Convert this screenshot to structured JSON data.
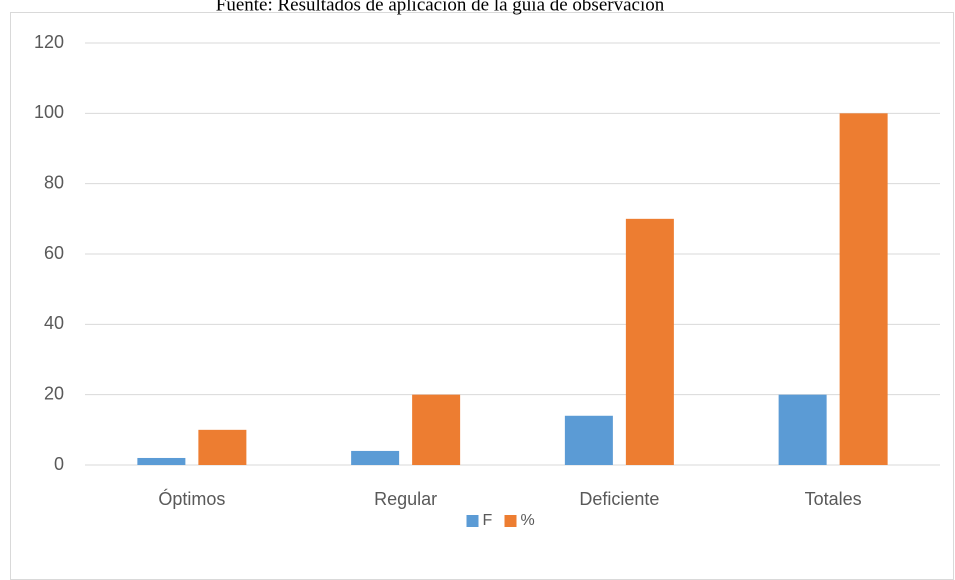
{
  "chart_data": {
    "type": "bar",
    "caption": "Fuente: Resultados de aplicación de la guía de observación",
    "categories": [
      "Óptimos",
      "Regular",
      "Deficiente",
      "Totales"
    ],
    "series": [
      {
        "name": "F",
        "color": "#5b9bd5",
        "values": [
          2,
          4,
          14,
          20
        ]
      },
      {
        "name": "%",
        "color": "#ed7d31",
        "values": [
          10,
          20,
          70,
          100
        ]
      }
    ],
    "ylim": [
      0,
      120
    ],
    "yticks": [
      0,
      20,
      40,
      60,
      80,
      100,
      120
    ],
    "grid": true,
    "legend": "bottom"
  }
}
